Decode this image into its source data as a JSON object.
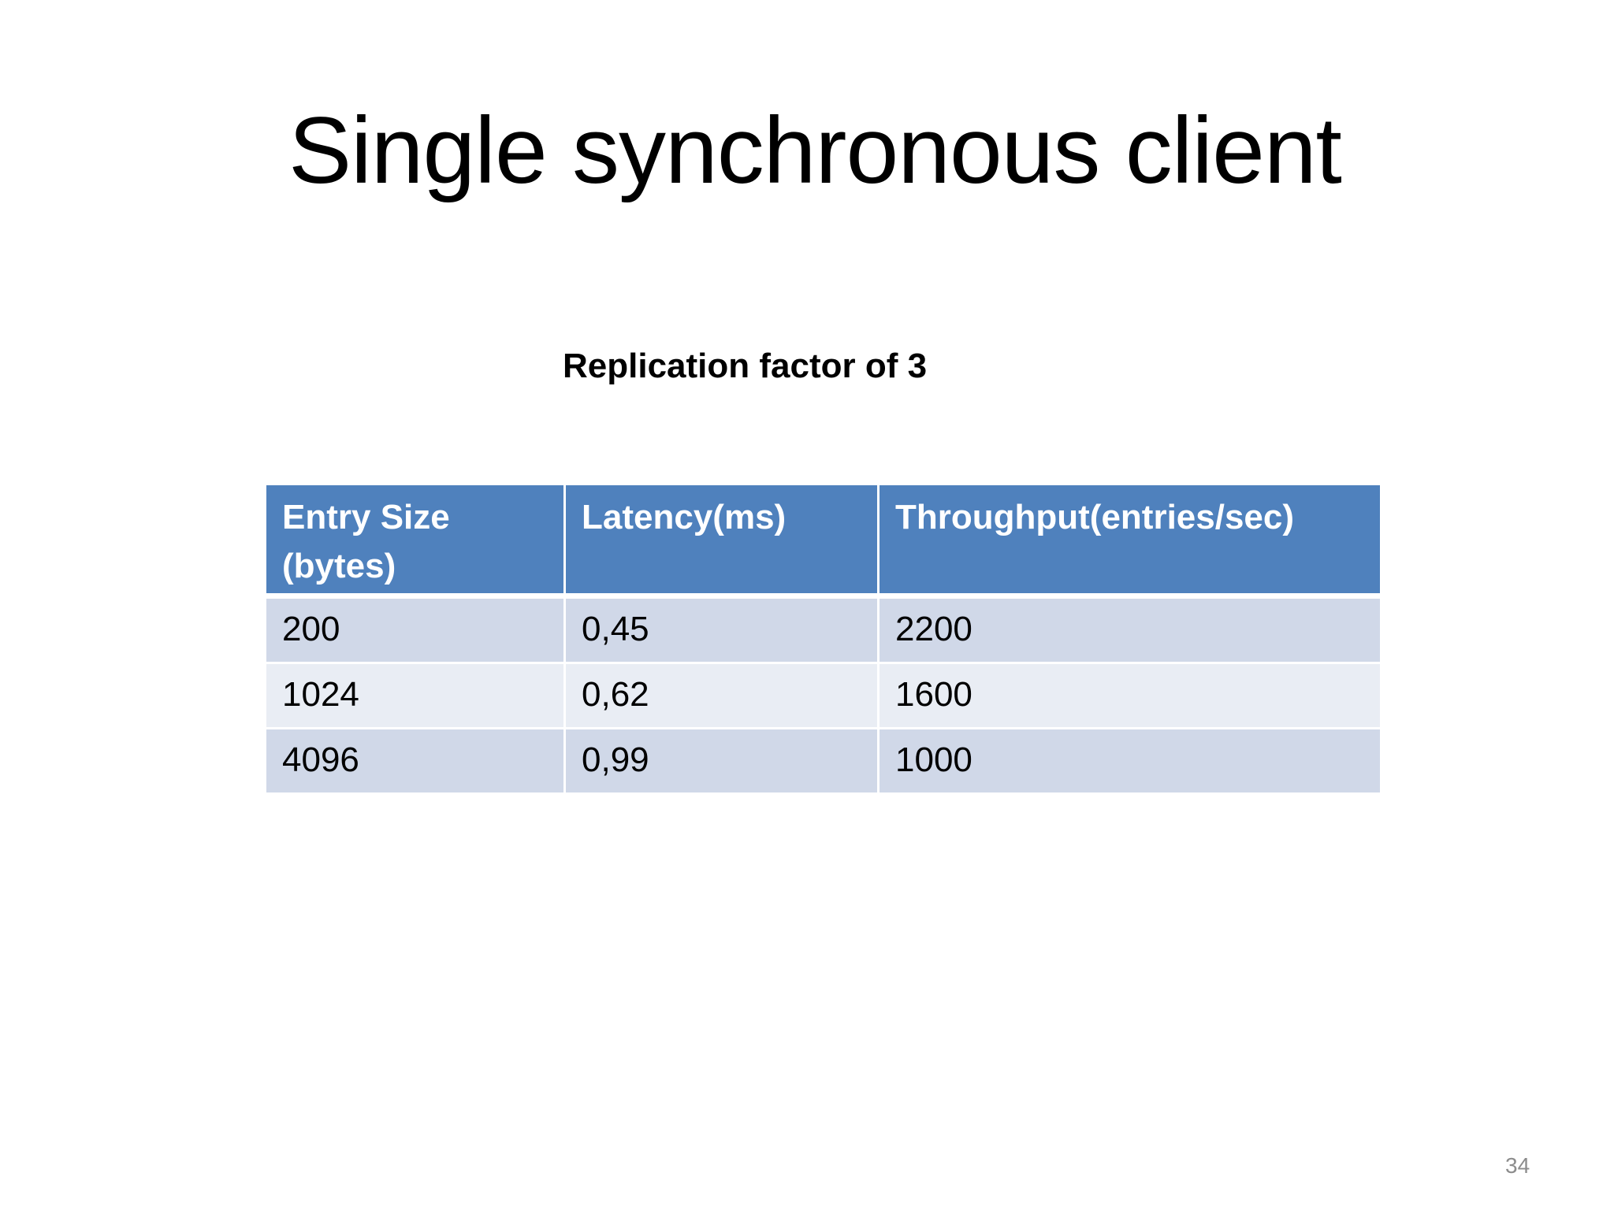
{
  "slide": {
    "title": "Single synchronous client",
    "subtitle": "Replication factor of 3",
    "page_number": "34"
  },
  "table": {
    "headers": [
      "Entry Size (bytes)",
      "Latency(ms)",
      "Throughput(entries/sec)"
    ],
    "rows": [
      [
        "200",
        "0,45",
        "2200"
      ],
      [
        "1024",
        "0,62",
        "1600"
      ],
      [
        "4096",
        "0,99",
        "1000"
      ]
    ],
    "colors": {
      "header": "#4f81bd",
      "row_odd": "#d0d8e8",
      "row_even": "#e9edf4"
    }
  }
}
